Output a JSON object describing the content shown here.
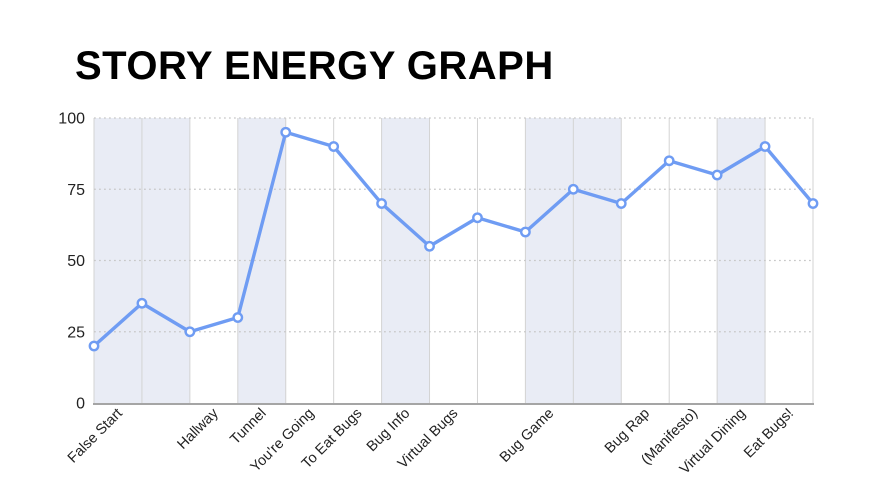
{
  "title": "STORY ENERGY GRAPH",
  "chart_data": {
    "type": "line",
    "title": "STORY ENERGY GRAPH",
    "xlabel": "",
    "ylabel": "",
    "categories": [
      "False Start",
      "",
      "Hallway",
      "Tunnel",
      "You're Going",
      "To Eat Bugs",
      "Bug Info",
      "Virtual Bugs",
      "",
      "Bug Game",
      "",
      "Bug Rap",
      "(Manifesto)",
      "Virtual Dining",
      "Eat Bugs!",
      ""
    ],
    "values": [
      20,
      35,
      25,
      30,
      95,
      90,
      70,
      55,
      65,
      60,
      75,
      70,
      85,
      80,
      90,
      70
    ],
    "ylim": [
      0,
      100
    ],
    "y_ticks": [
      0,
      25,
      50,
      75,
      100
    ],
    "legend": "none",
    "grid": {
      "horizontal": "dotted",
      "vertical": "solid"
    },
    "shaded_column_indexes": [
      0,
      1,
      3,
      6,
      9,
      10,
      13
    ],
    "marker": "open-circle",
    "colors": {
      "line": "#6f9cf3",
      "marker_fill": "#ffffff",
      "band": "#e9ecf5",
      "vertical_grid": "#d3d3d3",
      "horizontal_grid": "#c8c8c8",
      "axis": "#a5a5a5",
      "tick_text": "#222222",
      "title_text": "#000000",
      "background": "#ffffff"
    }
  }
}
